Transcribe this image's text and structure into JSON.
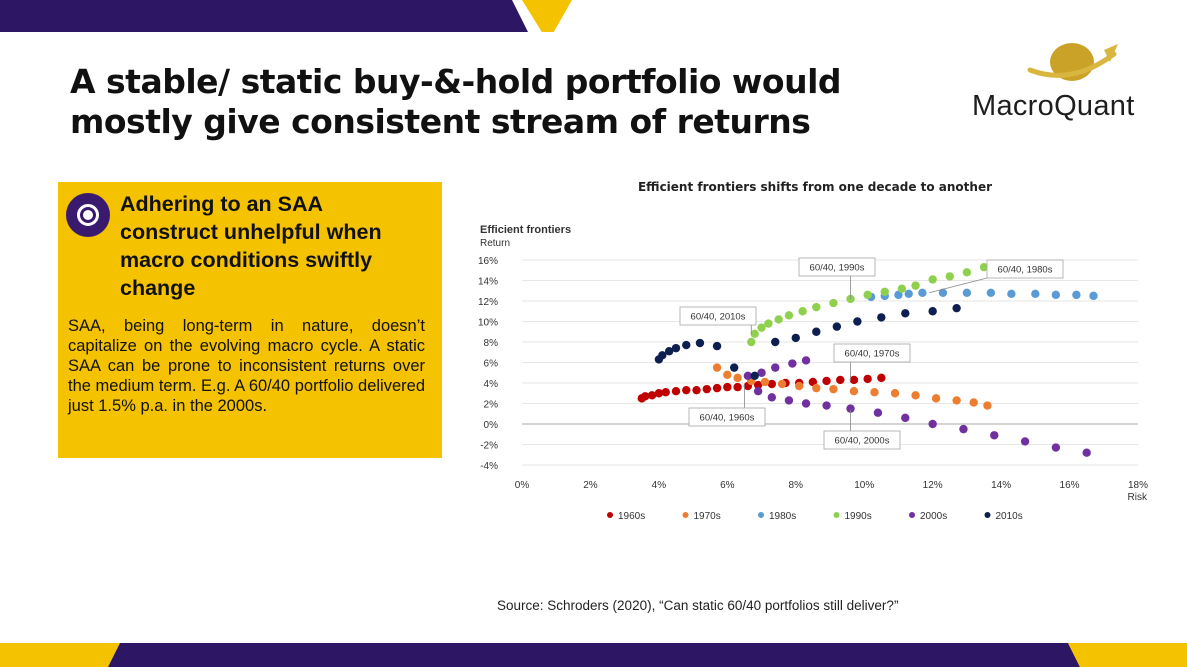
{
  "slide": {
    "title": "A stable/ static buy-&-hold portfolio would mostly give consistent stream of returns",
    "logo_text": "MacroQuant",
    "callout_heading": "Adhering to an SAA construct unhelpful when macro conditions swiftly change",
    "callout_body": "SAA, being long-term in nature, doesn’t capitalize on the evolving macro cycle. A static SAA can be prone to inconsistent returns over the medium term. E.g. A 60/40 portfolio delivered just 1.5% p.a. in the 2000s.",
    "source": "Source: Schroders (2020), “Can static 60/40 portfolios still deliver?”"
  },
  "colors": {
    "purple": "#2d1664",
    "yellow": "#f5c200",
    "gold": "#c9a227"
  },
  "icons": {
    "logo": "planet-arrow-icon",
    "callout": "target-icon"
  },
  "chart_data": {
    "type": "scatter",
    "title": "Efficient frontiers shifts from one decade to another",
    "panel_title": "Efficient frontiers",
    "ylabel": "Return",
    "xlabel": "Risk",
    "xlim": [
      0,
      18
    ],
    "ylim": [
      -4,
      16
    ],
    "xticks": [
      "0%",
      "2%",
      "4%",
      "6%",
      "8%",
      "10%",
      "12%",
      "14%",
      "16%",
      "18%"
    ],
    "yticks": [
      "16%",
      "14%",
      "12%",
      "10%",
      "8%",
      "6%",
      "4%",
      "2%",
      "0%",
      "-2%",
      "-4%"
    ],
    "series": [
      {
        "name": "1960s",
        "color": "#c00000",
        "x": [
          3.5,
          3.6,
          3.8,
          4.0,
          4.2,
          4.5,
          4.8,
          5.1,
          5.4,
          5.7,
          6.0,
          6.3,
          6.6,
          6.9,
          7.3,
          7.7,
          8.1,
          8.5,
          8.9,
          9.3,
          9.7,
          10.1,
          10.5
        ],
        "y": [
          2.5,
          2.7,
          2.8,
          3.0,
          3.1,
          3.2,
          3.3,
          3.3,
          3.4,
          3.5,
          3.6,
          3.6,
          3.7,
          3.8,
          3.9,
          4.0,
          4.0,
          4.1,
          4.2,
          4.3,
          4.3,
          4.4,
          4.5
        ]
      },
      {
        "name": "1970s",
        "color": "#ed7d31",
        "x": [
          5.7,
          6.0,
          6.3,
          6.7,
          7.1,
          7.6,
          8.1,
          8.6,
          9.1,
          9.7,
          10.3,
          10.9,
          11.5,
          12.1,
          12.7,
          13.2,
          13.6
        ],
        "y": [
          5.5,
          4.8,
          4.5,
          4.2,
          4.1,
          3.9,
          3.7,
          3.5,
          3.4,
          3.2,
          3.1,
          3.0,
          2.8,
          2.5,
          2.3,
          2.1,
          1.8
        ]
      },
      {
        "name": "1980s",
        "color": "#5b9bd5",
        "x": [
          10.2,
          10.6,
          11.0,
          11.3,
          11.7,
          12.3,
          13.0,
          13.7,
          14.3,
          15.0,
          15.6,
          16.2,
          16.7
        ],
        "y": [
          12.4,
          12.5,
          12.6,
          12.7,
          12.8,
          12.8,
          12.8,
          12.8,
          12.7,
          12.7,
          12.6,
          12.6,
          12.5
        ]
      },
      {
        "name": "1990s",
        "color": "#8fd14f",
        "x": [
          6.7,
          6.8,
          7.0,
          7.2,
          7.5,
          7.8,
          8.2,
          8.6,
          9.1,
          9.6,
          10.1,
          10.6,
          11.1,
          11.5,
          12.0,
          12.5,
          13.0,
          13.5
        ],
        "y": [
          8.0,
          8.8,
          9.4,
          9.8,
          10.2,
          10.6,
          11.0,
          11.4,
          11.8,
          12.2,
          12.6,
          12.9,
          13.2,
          13.5,
          14.1,
          14.4,
          14.8,
          15.3
        ]
      },
      {
        "name": "2000s",
        "color": "#7030a0",
        "x": [
          6.6,
          7.0,
          7.4,
          7.9,
          8.3,
          6.9,
          7.3,
          7.8,
          8.3,
          8.9,
          9.6,
          10.4,
          11.2,
          12.0,
          12.9,
          13.8,
          14.7,
          15.6,
          16.5
        ],
        "y": [
          4.7,
          5.0,
          5.5,
          5.9,
          6.2,
          3.2,
          2.6,
          2.3,
          2.0,
          1.8,
          1.5,
          1.1,
          0.6,
          0.0,
          -0.5,
          -1.1,
          -1.7,
          -2.3,
          -2.8
        ]
      },
      {
        "name": "2010s",
        "color": "#0d1f4f",
        "x": [
          4.0,
          4.1,
          4.3,
          4.5,
          4.8,
          5.2,
          5.7,
          6.2,
          6.8,
          7.4,
          8.0,
          8.6,
          9.2,
          9.8,
          10.5,
          11.2,
          12.0,
          12.7
        ],
        "y": [
          6.3,
          6.7,
          7.1,
          7.4,
          7.7,
          7.9,
          7.6,
          5.5,
          4.7,
          8.0,
          8.4,
          9.0,
          9.5,
          10.0,
          10.4,
          10.8,
          11.0,
          11.3
        ]
      }
    ],
    "annotations": [
      {
        "label": "60/40, 1990s",
        "x": 9.6,
        "y": 12.2
      },
      {
        "label": "60/40, 1980s",
        "x": 11.9,
        "y": 12.8
      },
      {
        "label": "60/40, 2010s",
        "x": 6.7,
        "y": 8.8
      },
      {
        "label": "60/40, 1970s",
        "x": 9.6,
        "y": 4.2
      },
      {
        "label": "60/40, 1960s",
        "x": 6.5,
        "y": 3.9
      },
      {
        "label": "60/40, 2000s",
        "x": 9.6,
        "y": 1.4
      }
    ]
  }
}
